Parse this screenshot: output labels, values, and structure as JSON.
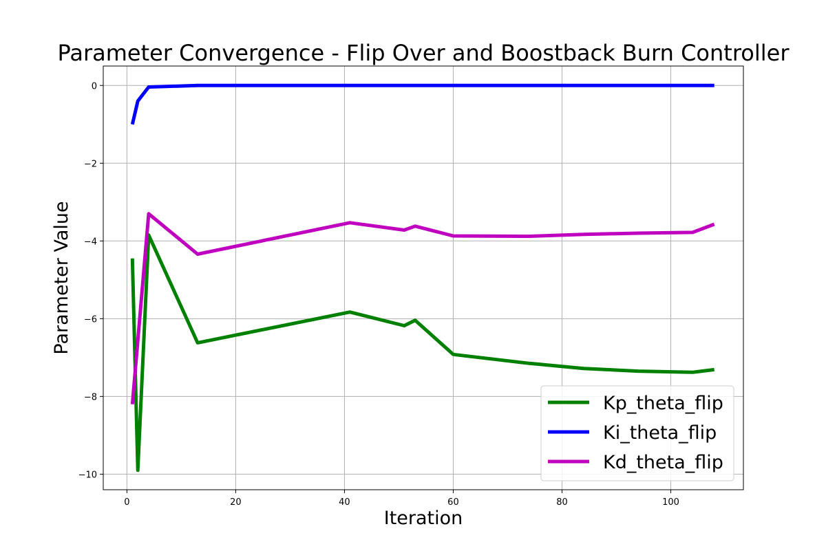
{
  "chart_data": {
    "type": "line",
    "title": "Parameter Convergence - Flip Over and Boostback Burn Controller",
    "xlabel": "Iteration",
    "ylabel": "Parameter Value",
    "xlim": [
      -4.35,
      113.35
    ],
    "ylim": [
      -10.4,
      0.5
    ],
    "xticks": [
      0,
      20,
      40,
      60,
      80,
      100
    ],
    "yticks": [
      0,
      -2,
      -4,
      -6,
      -8,
      -10
    ],
    "grid": true,
    "legend_position": "lower-right",
    "series": [
      {
        "name": "Kp_theta_flip",
        "color": "#008000",
        "x": [
          1,
          2,
          4,
          13,
          41,
          51,
          53,
          60,
          74,
          84,
          94,
          104,
          108
        ],
        "y": [
          -4.45,
          -9.9,
          -3.85,
          -6.62,
          -5.83,
          -6.18,
          -6.04,
          -6.92,
          -7.15,
          -7.28,
          -7.35,
          -7.38,
          -7.31
        ]
      },
      {
        "name": "Ki_theta_flip",
        "color": "#0000ff",
        "x": [
          1,
          2,
          4,
          13,
          41,
          51,
          53,
          60,
          74,
          84,
          94,
          104,
          108
        ],
        "y": [
          -1.0,
          -0.4,
          -0.04,
          0.0,
          0.0,
          0.0,
          0.0,
          0.0,
          0.0,
          0.0,
          0.0,
          0.0,
          0.0
        ]
      },
      {
        "name": "Kd_theta_flip",
        "color": "#bf00bf",
        "x": [
          1,
          4,
          13,
          41,
          51,
          53,
          60,
          74,
          84,
          94,
          104,
          108
        ],
        "y": [
          -8.2,
          -3.3,
          -4.34,
          -3.53,
          -3.72,
          -3.62,
          -3.87,
          -3.88,
          -3.83,
          -3.8,
          -3.78,
          -3.57
        ]
      }
    ]
  }
}
